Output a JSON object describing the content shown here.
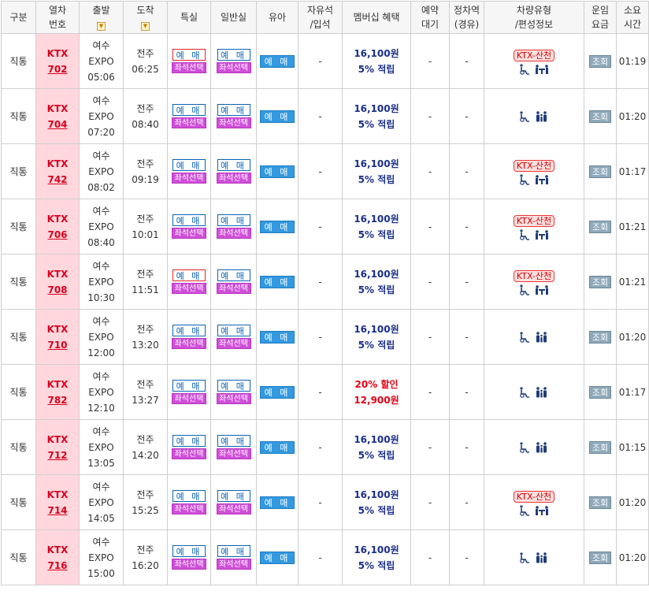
{
  "header": {
    "category": "구분",
    "train_no_l1": "열차",
    "train_no_l2": "번호",
    "departure": "출발",
    "arrival": "도착",
    "first_class": "특실",
    "standard": "일반실",
    "baby": "유아",
    "free_seat_l1": "자유석",
    "free_seat_l2": "/입석",
    "membership": "멤버십 혜택",
    "waitlist_l1": "예약",
    "waitlist_l2": "대기",
    "stop_l1": "정차역",
    "stop_l2": "(경유)",
    "vehicle_l1": "차량유형",
    "vehicle_l2": "/편성정보",
    "fare_l1": "운임",
    "fare_l2": "요금",
    "duration_l1": "소요",
    "duration_l2": "시간"
  },
  "labels": {
    "reserve": "예 매",
    "seat_select": "좌석선택",
    "baby_reserve": "예 매",
    "dash": "-",
    "fare_query": "조회",
    "vehicle_badge": "KTX-산천",
    "sort_icon": "sort-down-icon"
  },
  "colors": {
    "train_cell_bg": "#ffd7dc",
    "train_no": "#d8001e",
    "reserve_border": "#0a64b4",
    "reserve_border_alert": "#e22626",
    "seat_select_bg": "#cf4fd8",
    "baby_bg": "#3399e0",
    "benefit_text": "#1a2f8a",
    "discount_text": "#e40012",
    "fare_button_bg": "#8fa9ba",
    "icon": "#1e3c78"
  },
  "rows": [
    {
      "category": "직통",
      "train_type": "KTX",
      "train_no": "702",
      "dep_station": "여수",
      "dep_station2": "EXPO",
      "dep_time": "05:06",
      "arr_station": "전주",
      "arr_time": "06:25",
      "first_border": "red",
      "benefit_line1": "16,100원",
      "benefit_line2": "5% 적립",
      "discount": false,
      "vehicle_badge": true,
      "icons": "wheelchair-icon table-seat-icon",
      "duration": "01:19"
    },
    {
      "category": "직통",
      "train_type": "KTX",
      "train_no": "704",
      "dep_station": "여수",
      "dep_station2": "EXPO",
      "dep_time": "07:20",
      "arr_station": "전주",
      "arr_time": "08:40",
      "first_border": "blue",
      "benefit_line1": "16,100원",
      "benefit_line2": "5% 적립",
      "discount": false,
      "vehicle_badge": false,
      "icons": "wheelchair-icon family-icon",
      "duration": "01:20"
    },
    {
      "category": "직통",
      "train_type": "KTX",
      "train_no": "742",
      "dep_station": "여수",
      "dep_station2": "EXPO",
      "dep_time": "08:02",
      "arr_station": "전주",
      "arr_time": "09:19",
      "first_border": "blue",
      "benefit_line1": "16,100원",
      "benefit_line2": "5% 적립",
      "discount": false,
      "vehicle_badge": true,
      "icons": "wheelchair-icon table-seat-icon",
      "duration": "01:17"
    },
    {
      "category": "직통",
      "train_type": "KTX",
      "train_no": "706",
      "dep_station": "여수",
      "dep_station2": "EXPO",
      "dep_time": "08:40",
      "arr_station": "전주",
      "arr_time": "10:01",
      "first_border": "blue",
      "benefit_line1": "16,100원",
      "benefit_line2": "5% 적립",
      "discount": false,
      "vehicle_badge": true,
      "icons": "wheelchair-icon table-seat-icon",
      "duration": "01:21"
    },
    {
      "category": "직통",
      "train_type": "KTX",
      "train_no": "708",
      "dep_station": "여수",
      "dep_station2": "EXPO",
      "dep_time": "10:30",
      "arr_station": "전주",
      "arr_time": "11:51",
      "first_border": "red",
      "benefit_line1": "16,100원",
      "benefit_line2": "5% 적립",
      "discount": false,
      "vehicle_badge": true,
      "icons": "wheelchair-icon table-seat-icon",
      "duration": "01:21"
    },
    {
      "category": "직통",
      "train_type": "KTX",
      "train_no": "710",
      "dep_station": "여수",
      "dep_station2": "EXPO",
      "dep_time": "12:00",
      "arr_station": "전주",
      "arr_time": "13:20",
      "first_border": "blue",
      "benefit_line1": "16,100원",
      "benefit_line2": "5% 적립",
      "discount": false,
      "vehicle_badge": false,
      "icons": "wheelchair-icon family-icon",
      "duration": "01:20"
    },
    {
      "category": "직통",
      "train_type": "KTX",
      "train_no": "782",
      "dep_station": "여수",
      "dep_station2": "EXPO",
      "dep_time": "12:10",
      "arr_station": "전주",
      "arr_time": "13:27",
      "first_border": "blue",
      "benefit_line1": "20% 할인",
      "benefit_line2": "12,900원",
      "discount": true,
      "vehicle_badge": false,
      "icons": "wheelchair-icon family-icon",
      "duration": "01:17"
    },
    {
      "category": "직통",
      "train_type": "KTX",
      "train_no": "712",
      "dep_station": "여수",
      "dep_station2": "EXPO",
      "dep_time": "13:05",
      "arr_station": "전주",
      "arr_time": "14:20",
      "first_border": "blue",
      "benefit_line1": "16,100원",
      "benefit_line2": "5% 적립",
      "discount": false,
      "vehicle_badge": false,
      "icons": "wheelchair-icon family-icon",
      "duration": "01:15"
    },
    {
      "category": "직통",
      "train_type": "KTX",
      "train_no": "714",
      "dep_station": "여수",
      "dep_station2": "EXPO",
      "dep_time": "14:05",
      "arr_station": "전주",
      "arr_time": "15:25",
      "first_border": "blue",
      "benefit_line1": "16,100원",
      "benefit_line2": "5% 적립",
      "discount": false,
      "vehicle_badge": true,
      "icons": "wheelchair-icon table-seat-icon",
      "duration": "01:20"
    },
    {
      "category": "직통",
      "train_type": "KTX",
      "train_no": "716",
      "dep_station": "여수",
      "dep_station2": "EXPO",
      "dep_time": "15:00",
      "arr_station": "전주",
      "arr_time": "16:20",
      "first_border": "blue",
      "benefit_line1": "16,100원",
      "benefit_line2": "5% 적립",
      "discount": false,
      "vehicle_badge": false,
      "icons": "wheelchair-icon family-icon",
      "duration": "01:20"
    }
  ]
}
